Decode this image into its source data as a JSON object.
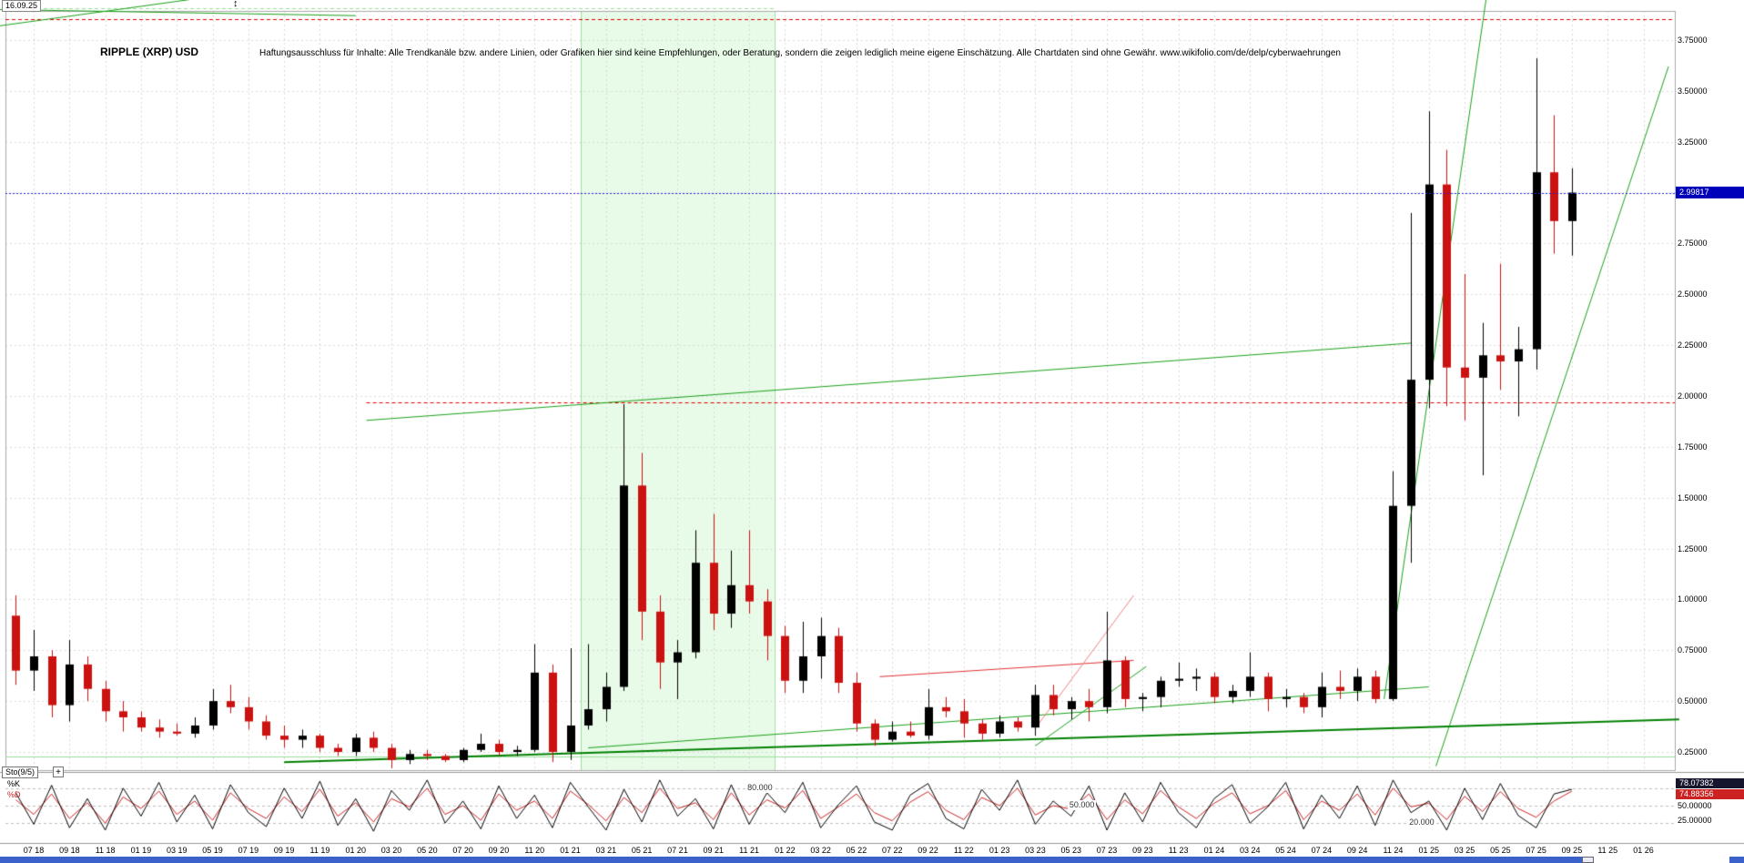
{
  "header": {
    "timestamp": "16.09.25",
    "updown_icon": "↕",
    "title": "RIPPLE (XRP) USD",
    "disclaimer": "Haftungsausschluss für Inhalte: Alle Trendkanäle bzw. andere Linien, oder Grafiken hier sind keine Empfehlungen, oder Beratung, sondern die zeigen lediglich meine eigene Einschätzung. Alle Chartdaten sind ohne Gewähr.  www.wikifolio.com/de/delp/cyberwaehrungen"
  },
  "chart_data": {
    "type": "candlestick",
    "title": "RIPPLE (XRP) USD",
    "start_month": "2018-06",
    "months_per_candle": 1,
    "ylim": [
      0.16,
      3.9
    ],
    "price_axis": {
      "grid_min": 0.25,
      "grid_max": 3.75,
      "grid_step": 0.25,
      "ticks": [
        {
          "label": "3.75000",
          "value": 3.75
        },
        {
          "label": "3.50000",
          "value": 3.5
        },
        {
          "label": "3.25000",
          "value": 3.25
        },
        {
          "label": "2.75000",
          "value": 2.75
        },
        {
          "label": "2.50000",
          "value": 2.5
        },
        {
          "label": "2.25000",
          "value": 2.25
        },
        {
          "label": "2.00000",
          "value": 2.0
        },
        {
          "label": "1.75000",
          "value": 1.75
        },
        {
          "label": "1.50000",
          "value": 1.5
        },
        {
          "label": "1.25000",
          "value": 1.25
        },
        {
          "label": "1.00000",
          "value": 1.0
        },
        {
          "label": "0.75000",
          "value": 0.75
        },
        {
          "label": "0.50000",
          "value": 0.5
        },
        {
          "label": "0.25000",
          "value": 0.25
        }
      ]
    },
    "current_price": {
      "label": "2.99817",
      "value": 2.99817,
      "line_color": "#2424cc",
      "badge_color": "#0000bb"
    },
    "x_axis": {
      "first_month_index": 1,
      "month_step": 2,
      "labels": [
        "07 18",
        "09 18",
        "11 18",
        "01 19",
        "03 19",
        "05 19",
        "07 19",
        "09 19",
        "11 19",
        "01 20",
        "03 20",
        "05 20",
        "07 20",
        "09 20",
        "11 20",
        "01 21",
        "03 21",
        "05 21",
        "07 21",
        "09 21",
        "11 21",
        "01 22",
        "03 22",
        "05 22",
        "07 22",
        "09 22",
        "11 22",
        "01 23",
        "03 23",
        "05 23",
        "07 23",
        "09 23",
        "11 23",
        "01 24",
        "03 24",
        "05 24",
        "07 24",
        "09 24",
        "11 24",
        "01 25",
        "03 25",
        "05 25",
        "07 25",
        "09 25",
        "11 25",
        "01 26"
      ]
    },
    "colors": {
      "up": "#000000",
      "down": "#cc1111",
      "grid": "#d9d9d9"
    },
    "shaded_region": {
      "from": 31.6,
      "to": 42.4,
      "fill": "rgba(185,240,185,0.32)",
      "edge": "rgba(150,220,150,0.9)"
    },
    "trend_lines": [
      {
        "color": "#18a018",
        "w": 1,
        "pts": [
          [
            19.6,
            1.88
          ],
          [
            78.0,
            2.26
          ]
        ]
      },
      {
        "color": "#008000",
        "w": 2,
        "pts": [
          [
            15.0,
            0.2
          ],
          [
            93.0,
            0.41
          ]
        ]
      },
      {
        "color": "#18a018",
        "w": 1,
        "pts": [
          [
            32.0,
            0.27
          ],
          [
            79.0,
            0.57
          ]
        ]
      },
      {
        "color": "#18a018",
        "w": 1,
        "pts": [
          [
            76.5,
            0.51
          ],
          [
            82.2,
            3.95
          ]
        ]
      },
      {
        "color": "#18a018",
        "w": 1,
        "pts": [
          [
            79.4,
            0.18
          ],
          [
            92.4,
            3.62
          ]
        ]
      },
      {
        "color": "#e03030",
        "w": 1,
        "pts": [
          [
            48.3,
            0.62
          ],
          [
            62.5,
            0.7
          ]
        ]
      },
      {
        "color": "#f08080",
        "w": 1,
        "pts": [
          [
            57.2,
            0.39
          ],
          [
            62.5,
            1.02
          ]
        ]
      },
      {
        "color": "#18a018",
        "w": 1,
        "pts": [
          [
            57.0,
            0.28
          ],
          [
            63.2,
            0.67
          ]
        ]
      },
      {
        "color": "#18a018",
        "w": 1,
        "pts": [
          [
            -0.9,
            3.82
          ],
          [
            9.8,
            3.95
          ]
        ]
      },
      {
        "color": "#18a018",
        "w": 1,
        "pts": [
          [
            -0.9,
            3.9
          ],
          [
            19.0,
            3.87
          ]
        ]
      }
    ],
    "h_lines": [
      {
        "price": 3.853,
        "color": "#e00000",
        "dash": [
          4,
          3
        ],
        "from": -0.9,
        "to": 93
      },
      {
        "price": 1.97,
        "color": "#e00000",
        "dash": [
          4,
          3
        ],
        "from": 19.6,
        "to": 93
      },
      {
        "price": 3.905,
        "color": "#9adf9a",
        "dash": [
          4,
          3
        ],
        "from": -0.9,
        "to": 42.5
      },
      {
        "price": 0.227,
        "color": "#9adf9a",
        "dash": null,
        "from": -0.9,
        "to": 93
      }
    ],
    "ohlc": [
      [
        0.92,
        1.02,
        0.58,
        0.65
      ],
      [
        0.65,
        0.85,
        0.55,
        0.72
      ],
      [
        0.72,
        0.75,
        0.42,
        0.48
      ],
      [
        0.48,
        0.8,
        0.4,
        0.68
      ],
      [
        0.68,
        0.72,
        0.5,
        0.56
      ],
      [
        0.56,
        0.6,
        0.4,
        0.45
      ],
      [
        0.45,
        0.5,
        0.35,
        0.42
      ],
      [
        0.42,
        0.45,
        0.35,
        0.37
      ],
      [
        0.37,
        0.41,
        0.32,
        0.35
      ],
      [
        0.35,
        0.39,
        0.33,
        0.34
      ],
      [
        0.34,
        0.42,
        0.32,
        0.38
      ],
      [
        0.38,
        0.56,
        0.36,
        0.5
      ],
      [
        0.5,
        0.58,
        0.44,
        0.47
      ],
      [
        0.47,
        0.52,
        0.36,
        0.4
      ],
      [
        0.4,
        0.43,
        0.31,
        0.33
      ],
      [
        0.33,
        0.38,
        0.27,
        0.31
      ],
      [
        0.31,
        0.36,
        0.27,
        0.33
      ],
      [
        0.33,
        0.34,
        0.25,
        0.27
      ],
      [
        0.27,
        0.29,
        0.23,
        0.25
      ],
      [
        0.25,
        0.34,
        0.23,
        0.32
      ],
      [
        0.32,
        0.35,
        0.25,
        0.27
      ],
      [
        0.27,
        0.29,
        0.17,
        0.21
      ],
      [
        0.21,
        0.26,
        0.19,
        0.24
      ],
      [
        0.24,
        0.26,
        0.21,
        0.23
      ],
      [
        0.23,
        0.24,
        0.2,
        0.21
      ],
      [
        0.21,
        0.27,
        0.2,
        0.26
      ],
      [
        0.26,
        0.34,
        0.25,
        0.29
      ],
      [
        0.29,
        0.31,
        0.23,
        0.25
      ],
      [
        0.25,
        0.28,
        0.23,
        0.26
      ],
      [
        0.26,
        0.78,
        0.25,
        0.64
      ],
      [
        0.64,
        0.68,
        0.2,
        0.25
      ],
      [
        0.25,
        0.76,
        0.21,
        0.38
      ],
      [
        0.38,
        0.78,
        0.36,
        0.46
      ],
      [
        0.46,
        0.64,
        0.4,
        0.57
      ],
      [
        0.57,
        1.96,
        0.55,
        1.56
      ],
      [
        1.56,
        1.72,
        0.8,
        0.94
      ],
      [
        0.94,
        1.02,
        0.56,
        0.69
      ],
      [
        0.69,
        0.8,
        0.51,
        0.74
      ],
      [
        0.74,
        1.34,
        0.71,
        1.18
      ],
      [
        1.18,
        1.42,
        0.85,
        0.93
      ],
      [
        0.93,
        1.24,
        0.86,
        1.07
      ],
      [
        1.07,
        1.34,
        0.93,
        0.99
      ],
      [
        0.99,
        1.05,
        0.7,
        0.82
      ],
      [
        0.82,
        0.87,
        0.54,
        0.6
      ],
      [
        0.6,
        0.89,
        0.54,
        0.72
      ],
      [
        0.72,
        0.91,
        0.61,
        0.82
      ],
      [
        0.82,
        0.86,
        0.54,
        0.59
      ],
      [
        0.59,
        0.64,
        0.35,
        0.39
      ],
      [
        0.39,
        0.41,
        0.28,
        0.31
      ],
      [
        0.31,
        0.4,
        0.3,
        0.35
      ],
      [
        0.35,
        0.4,
        0.32,
        0.33
      ],
      [
        0.33,
        0.56,
        0.31,
        0.47
      ],
      [
        0.47,
        0.52,
        0.42,
        0.45
      ],
      [
        0.45,
        0.51,
        0.32,
        0.39
      ],
      [
        0.39,
        0.41,
        0.31,
        0.34
      ],
      [
        0.34,
        0.43,
        0.32,
        0.4
      ],
      [
        0.4,
        0.42,
        0.35,
        0.37
      ],
      [
        0.37,
        0.58,
        0.33,
        0.53
      ],
      [
        0.53,
        0.58,
        0.43,
        0.46
      ],
      [
        0.46,
        0.52,
        0.41,
        0.5
      ],
      [
        0.5,
        0.56,
        0.4,
        0.47
      ],
      [
        0.47,
        0.94,
        0.44,
        0.7
      ],
      [
        0.7,
        0.72,
        0.47,
        0.51
      ],
      [
        0.51,
        0.54,
        0.45,
        0.52
      ],
      [
        0.52,
        0.62,
        0.47,
        0.6
      ],
      [
        0.6,
        0.69,
        0.57,
        0.61
      ],
      [
        0.61,
        0.66,
        0.55,
        0.62
      ],
      [
        0.62,
        0.64,
        0.49,
        0.52
      ],
      [
        0.52,
        0.58,
        0.49,
        0.55
      ],
      [
        0.55,
        0.74,
        0.52,
        0.62
      ],
      [
        0.62,
        0.64,
        0.45,
        0.51
      ],
      [
        0.51,
        0.56,
        0.47,
        0.52
      ],
      [
        0.52,
        0.54,
        0.44,
        0.47
      ],
      [
        0.47,
        0.64,
        0.42,
        0.57
      ],
      [
        0.57,
        0.65,
        0.51,
        0.55
      ],
      [
        0.55,
        0.66,
        0.5,
        0.62
      ],
      [
        0.62,
        0.65,
        0.49,
        0.51
      ],
      [
        0.51,
        1.63,
        0.5,
        1.46
      ],
      [
        1.46,
        2.9,
        1.18,
        2.08
      ],
      [
        2.08,
        3.4,
        1.94,
        3.04
      ],
      [
        3.04,
        3.21,
        1.95,
        2.14
      ],
      [
        2.14,
        2.6,
        1.88,
        2.09
      ],
      [
        2.09,
        2.36,
        1.61,
        2.2
      ],
      [
        2.2,
        2.65,
        2.03,
        2.17
      ],
      [
        2.17,
        2.34,
        1.9,
        2.23
      ],
      [
        2.23,
        3.66,
        2.13,
        3.1
      ],
      [
        3.1,
        3.38,
        2.7,
        2.86
      ],
      [
        2.86,
        3.12,
        2.69,
        3.0
      ]
    ]
  },
  "indicator": {
    "label": "Sto(9/5)",
    "plus_icon": "+",
    "k_label": "%K",
    "d_label": "%D",
    "k_value": "78.07382",
    "d_value": "74.88356",
    "k_color": "#000000",
    "d_color": "#cc2222",
    "axis_ticks": [
      {
        "label": "50.00000",
        "value": 50
      },
      {
        "label": "25.00000",
        "value": 25
      }
    ],
    "levels": [
      {
        "label": "80.000",
        "value": 80,
        "label_mi": 40.8
      },
      {
        "label": "50.000",
        "value": 50,
        "label_mi": 58.8
      },
      {
        "label": "20.000",
        "value": 20,
        "label_mi": 77.8
      }
    ],
    "k_series": [
      72,
      18,
      85,
      12,
      62,
      8,
      80,
      32,
      90,
      22,
      68,
      10,
      86,
      38,
      14,
      80,
      28,
      92,
      16,
      62,
      6,
      76,
      42,
      94,
      20,
      58,
      10,
      84,
      28,
      68,
      12,
      90,
      48,
      8,
      78,
      22,
      94,
      32,
      62,
      10,
      86,
      18,
      72,
      38,
      90,
      12,
      52,
      84,
      22,
      8,
      68,
      88,
      28,
      10,
      78,
      42,
      94,
      18,
      58,
      32,
      84,
      8,
      72,
      22,
      90,
      38,
      12,
      62,
      86,
      20,
      48,
      90,
      10,
      68,
      28,
      84,
      16,
      94,
      38,
      58,
      8,
      80,
      26,
      88,
      33,
      12,
      70,
      78.07
    ],
    "d_series": [
      60,
      35,
      70,
      28,
      55,
      20,
      65,
      45,
      75,
      35,
      58,
      25,
      72,
      45,
      28,
      65,
      40,
      78,
      32,
      55,
      22,
      62,
      48,
      80,
      35,
      50,
      25,
      70,
      42,
      58,
      28,
      75,
      52,
      24,
      64,
      38,
      80,
      45,
      55,
      26,
      72,
      34,
      60,
      46,
      76,
      28,
      48,
      70,
      38,
      24,
      56,
      74,
      42,
      26,
      64,
      50,
      80,
      34,
      50,
      44,
      70,
      26,
      60,
      36,
      76,
      48,
      28,
      54,
      72,
      36,
      50,
      76,
      26,
      58,
      42,
      70,
      34,
      80,
      48,
      54,
      26,
      66,
      40,
      74,
      45,
      30,
      58,
      74.88
    ]
  }
}
